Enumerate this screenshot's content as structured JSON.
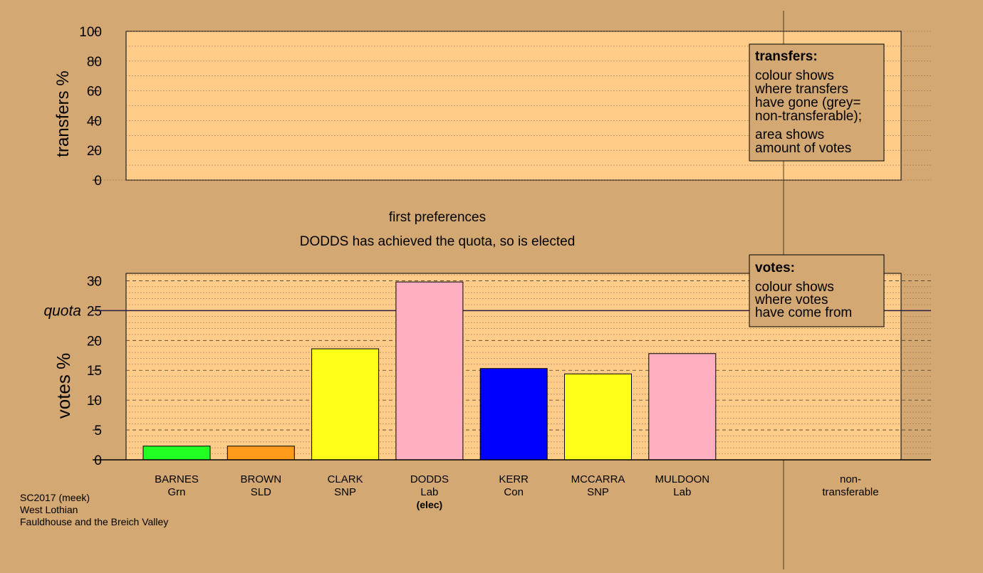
{
  "chart_data": [
    {
      "type": "bar",
      "title": "first preferences",
      "subtitle": "DODDS has achieved the quota, so is elected",
      "ylabel": "votes %",
      "ylim": [
        0,
        31
      ],
      "yticks": [
        0,
        5,
        10,
        15,
        20,
        25,
        30
      ],
      "quota": {
        "label": "quota",
        "value": 25
      },
      "categories": [
        {
          "name": "BARNES",
          "party": "Grn",
          "note": "",
          "value": 2.3,
          "color": "#22ff22"
        },
        {
          "name": "BROWN",
          "party": "SLD",
          "note": "",
          "value": 2.3,
          "color": "#ff9a1a"
        },
        {
          "name": "CLARK",
          "party": "SNP",
          "note": "",
          "value": 18.6,
          "color": "#ffff1a"
        },
        {
          "name": "DODDS",
          "party": "Lab",
          "note": "(elec)",
          "value": 29.8,
          "color": "#ffb0c0"
        },
        {
          "name": "KERR",
          "party": "Con",
          "note": "",
          "value": 15.3,
          "color": "#0000ff"
        },
        {
          "name": "MCCARRA",
          "party": "SNP",
          "note": "",
          "value": 14.4,
          "color": "#ffff1a"
        },
        {
          "name": "MULDOON",
          "party": "Lab",
          "note": "",
          "value": 17.8,
          "color": "#ffb0c0"
        }
      ],
      "extra_category": {
        "line1": "non-",
        "line2": "transferable"
      },
      "legend": {
        "title": "votes:",
        "lines": [
          "colour shows",
          "where votes",
          "have come from"
        ]
      }
    },
    {
      "type": "bar",
      "ylabel": "transfers %",
      "ylim": [
        0,
        100
      ],
      "yticks": [
        0,
        20,
        40,
        60,
        80,
        100
      ],
      "values": [],
      "legend": {
        "title": "transfers:",
        "lines1": [
          "colour shows",
          "where transfers",
          "have gone (grey=",
          "non-transferable);"
        ],
        "lines2": [
          "area shows",
          "amount of votes"
        ]
      }
    }
  ],
  "caption": {
    "line1": "SC2017 (meek)",
    "line2": "West Lothian",
    "line3": "Fauldhouse and the Breich Valley"
  },
  "colors": {
    "background": "#d4a872",
    "plot_area": "#ffcc8a",
    "legend_box": "#d4a872"
  }
}
